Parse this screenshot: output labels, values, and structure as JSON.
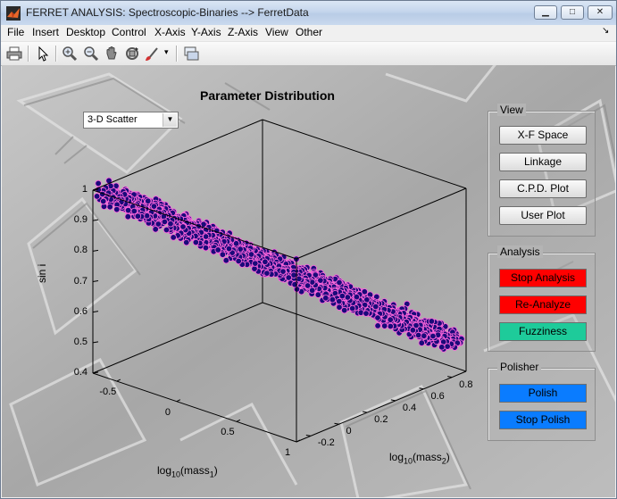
{
  "window": {
    "title": "FERRET ANALYSIS: Spectroscopic-Binaries --> FerretData",
    "controls": {
      "minimize": "▁",
      "maximize": "□",
      "close": "✕"
    }
  },
  "menubar": {
    "items": [
      "File",
      "Insert",
      "Desktop",
      "Control",
      "X-Axis",
      "Y-Axis",
      "Z-Axis",
      "View",
      "Other"
    ],
    "dock_arrow": "↘"
  },
  "toolbar": {
    "icons": [
      "print-icon",
      "pointer-icon",
      "zoom-in-icon",
      "zoom-out-icon",
      "pan-hand-icon",
      "rotate-3d-icon",
      "data-brush-icon",
      "link-plot-icon"
    ],
    "brush_dropdown_arrow": "▾"
  },
  "plot": {
    "title": "Parameter Distribution",
    "plot_type_select": {
      "value": "3-D Scatter",
      "arrow": "▼"
    }
  },
  "chart_data": {
    "type": "scatter",
    "title": "Parameter Distribution",
    "xlabel": {
      "base": "log",
      "sub": "10",
      "name": "(mass",
      "name_sub": "1",
      "close": ")"
    },
    "ylabel": {
      "base": "log",
      "sub": "10",
      "name": "(mass",
      "name_sub": "2",
      "close": ")"
    },
    "zlabel": "sin i",
    "x_ticks": [
      "-0.5",
      "0",
      "0.5",
      "1"
    ],
    "y_ticks": [
      "-0.2",
      "0",
      "0.2",
      "0.4",
      "0.6",
      "0.8"
    ],
    "z_ticks": [
      "0.4",
      "0.5",
      "0.6",
      "0.7",
      "0.8",
      "0.9",
      "1"
    ],
    "xlim": [
      -0.7,
      1.0
    ],
    "ylim": [
      -0.3,
      0.9
    ],
    "zlim": [
      0.4,
      1.0
    ],
    "marker_color": "#1a0a7a",
    "marker_edge_color": "#ff66dd",
    "point_cloud_band": {
      "start": {
        "x": -0.65,
        "y": -0.25,
        "z": 0.99
      },
      "end": {
        "x": 0.95,
        "y": 0.85,
        "z": 0.5
      },
      "count": 2200
    },
    "grid": false,
    "box": true
  },
  "panels": {
    "view": {
      "title": "View",
      "buttons": [
        "X-F Space",
        "Linkage",
        "C.P.D. Plot",
        "User Plot"
      ]
    },
    "analysis": {
      "title": "Analysis",
      "buttons": [
        "Stop Analysis",
        "Re-Analyze",
        "Fuzziness"
      ],
      "colors": [
        "#ff0000",
        "#ff0000",
        "#1ecb9a"
      ]
    },
    "polisher": {
      "title": "Polisher",
      "buttons": [
        "Polish",
        "Stop Polish"
      ],
      "colors": [
        "#0a7cff",
        "#0a7cff"
      ]
    }
  }
}
